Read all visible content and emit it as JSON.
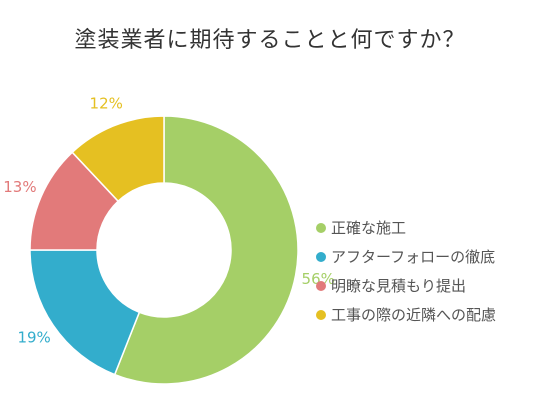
{
  "chart_data": {
    "type": "pie",
    "title": "塗装業者に期待することと何ですか？",
    "categories": [
      "正確な施工",
      "アフターフォローの徹底",
      "明瞭な見積もり提出",
      "工事の際の近隣への配慮"
    ],
    "values": [
      56,
      19,
      13,
      12
    ],
    "value_labels": [
      "56%",
      "19%",
      "13%",
      "12%"
    ],
    "colors": [
      "#a5cf67",
      "#33adcc",
      "#e27a7a",
      "#e5c022"
    ],
    "hole": "donut",
    "legend_position": "right"
  }
}
